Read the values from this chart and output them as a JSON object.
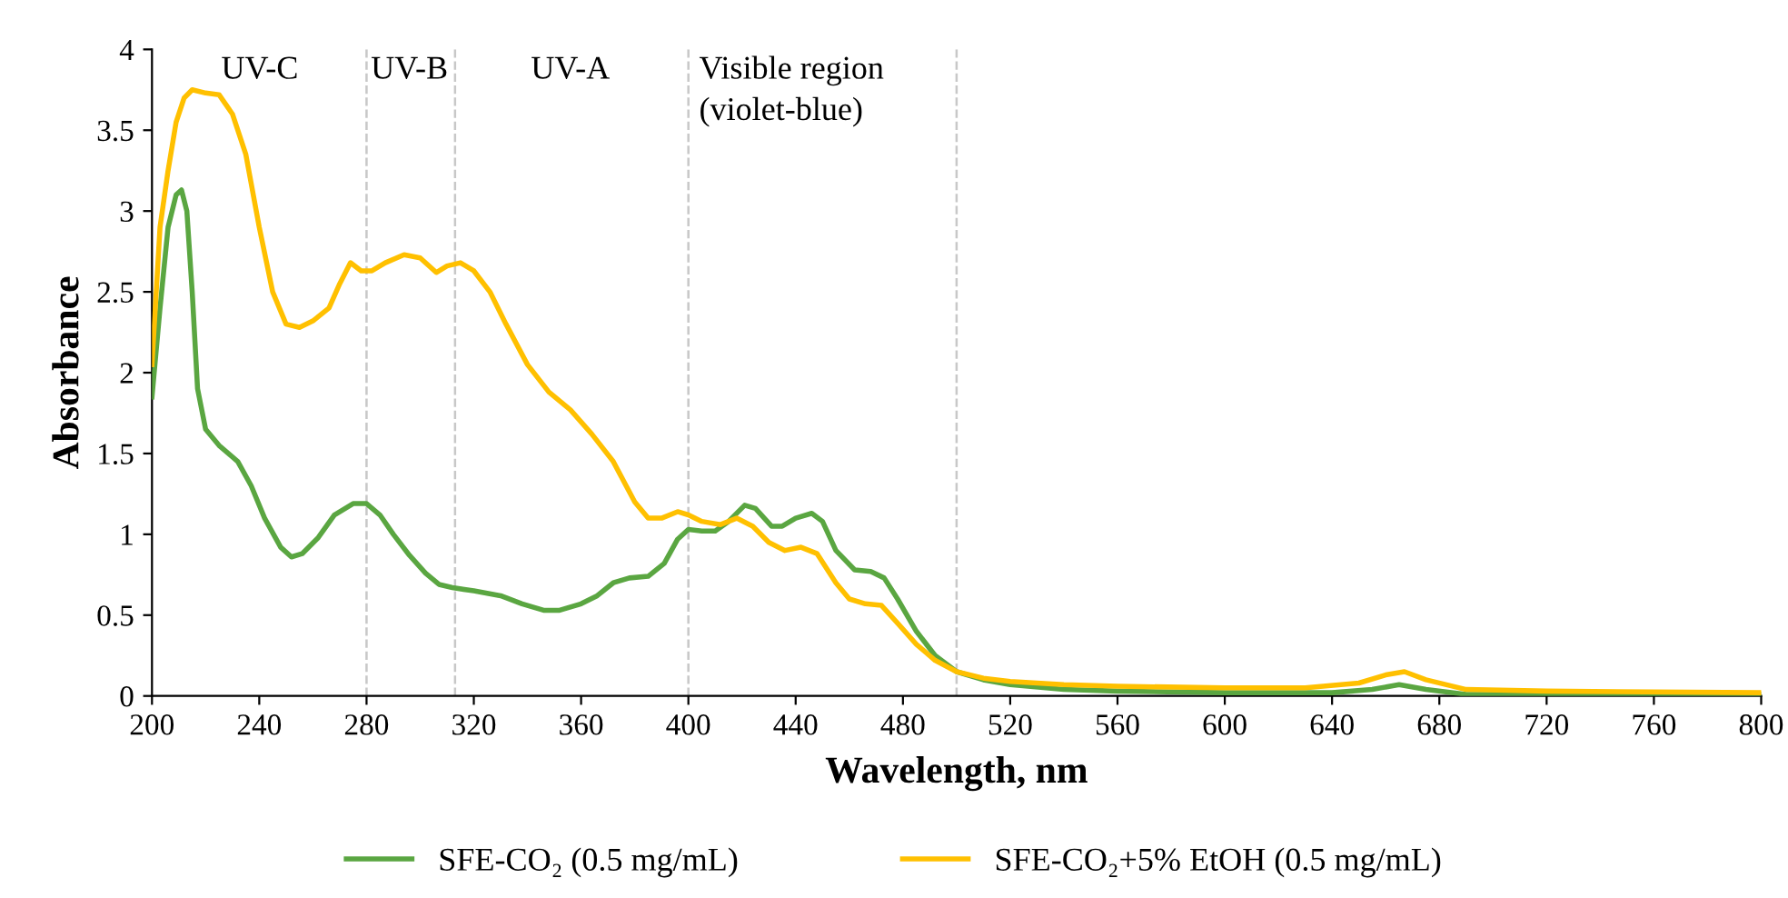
{
  "chart_data": {
    "type": "line",
    "xlabel": "Wavelength, nm",
    "ylabel": "Absorbance",
    "xlim": [
      200,
      800
    ],
    "xticks": [
      200,
      240,
      280,
      320,
      360,
      400,
      440,
      480,
      520,
      560,
      600,
      640,
      680,
      720,
      760,
      800
    ],
    "ylim": [
      0,
      4
    ],
    "yticks": [
      0,
      0.5,
      1,
      1.5,
      2,
      2.5,
      3,
      3.5,
      4
    ],
    "grid": false,
    "legend": "bottom",
    "marker": "none",
    "line_style": "solid",
    "ref_lines": [
      {
        "axis": "x",
        "value": 280,
        "color": "#c8c8c8",
        "line_style": "dashed"
      },
      {
        "axis": "x",
        "value": 313,
        "color": "#c8c8c8",
        "line_style": "dashed"
      },
      {
        "axis": "x",
        "value": 400,
        "color": "#c8c8c8",
        "line_style": "dashed"
      },
      {
        "axis": "x",
        "value": 500,
        "color": "#c8c8c8",
        "line_style": "dashed"
      }
    ],
    "annotations": [
      "UV-C",
      "UV-B",
      "UV-A",
      "Visible region\n(violet-blue)"
    ],
    "series": [
      {
        "name": "SFE-CO₂ (0.5 mg/mL)",
        "color": "#5aa641",
        "x": [
          200,
          203,
          206,
          209,
          211,
          213,
          215,
          217,
          220,
          225,
          232,
          237,
          242,
          248,
          252,
          256,
          262,
          268,
          275,
          280,
          285,
          290,
          296,
          302,
          307,
          312,
          320,
          330,
          338,
          346,
          352,
          360,
          366,
          372,
          378,
          385,
          391,
          396,
          400,
          405,
          410,
          415,
          421,
          425,
          431,
          435,
          440,
          446,
          450,
          455,
          462,
          468,
          473,
          478,
          485,
          492,
          500,
          510,
          520,
          540,
          560,
          600,
          640,
          655,
          665,
          675,
          690,
          720,
          800
        ],
        "values": [
          1.85,
          2.4,
          2.9,
          3.1,
          3.13,
          3.0,
          2.5,
          1.9,
          1.65,
          1.55,
          1.45,
          1.3,
          1.1,
          0.92,
          0.86,
          0.88,
          0.98,
          1.12,
          1.19,
          1.19,
          1.12,
          1.0,
          0.87,
          0.76,
          0.69,
          0.67,
          0.65,
          0.62,
          0.57,
          0.53,
          0.53,
          0.57,
          0.62,
          0.7,
          0.73,
          0.74,
          0.82,
          0.97,
          1.03,
          1.02,
          1.02,
          1.08,
          1.18,
          1.16,
          1.05,
          1.05,
          1.1,
          1.13,
          1.08,
          0.9,
          0.78,
          0.77,
          0.73,
          0.6,
          0.4,
          0.25,
          0.15,
          0.1,
          0.07,
          0.04,
          0.03,
          0.02,
          0.02,
          0.04,
          0.07,
          0.04,
          0.01,
          0.01,
          0.01
        ]
      },
      {
        "name": "SFE-CO₂+5% EtOH (0.5 mg/mL)",
        "color": "#ffc000",
        "x": [
          200,
          203,
          206,
          209,
          212,
          215,
          220,
          225,
          230,
          235,
          240,
          245,
          250,
          255,
          260,
          266,
          270,
          274,
          278,
          282,
          287,
          294,
          300,
          306,
          310,
          315,
          320,
          326,
          332,
          340,
          348,
          356,
          364,
          372,
          380,
          385,
          390,
          396,
          400,
          405,
          412,
          418,
          424,
          430,
          436,
          442,
          448,
          455,
          460,
          466,
          472,
          478,
          485,
          492,
          500,
          510,
          520,
          540,
          560,
          600,
          630,
          650,
          660,
          667,
          675,
          690,
          720,
          800
        ],
        "values": [
          2.05,
          2.9,
          3.25,
          3.55,
          3.7,
          3.75,
          3.73,
          3.72,
          3.6,
          3.35,
          2.9,
          2.5,
          2.3,
          2.28,
          2.32,
          2.4,
          2.55,
          2.68,
          2.63,
          2.63,
          2.68,
          2.73,
          2.71,
          2.62,
          2.66,
          2.68,
          2.63,
          2.5,
          2.3,
          2.05,
          1.88,
          1.77,
          1.62,
          1.45,
          1.2,
          1.1,
          1.1,
          1.14,
          1.12,
          1.08,
          1.06,
          1.1,
          1.05,
          0.95,
          0.9,
          0.92,
          0.88,
          0.7,
          0.6,
          0.57,
          0.56,
          0.45,
          0.32,
          0.22,
          0.15,
          0.11,
          0.09,
          0.07,
          0.06,
          0.05,
          0.05,
          0.08,
          0.13,
          0.15,
          0.1,
          0.04,
          0.03,
          0.02
        ]
      }
    ]
  }
}
